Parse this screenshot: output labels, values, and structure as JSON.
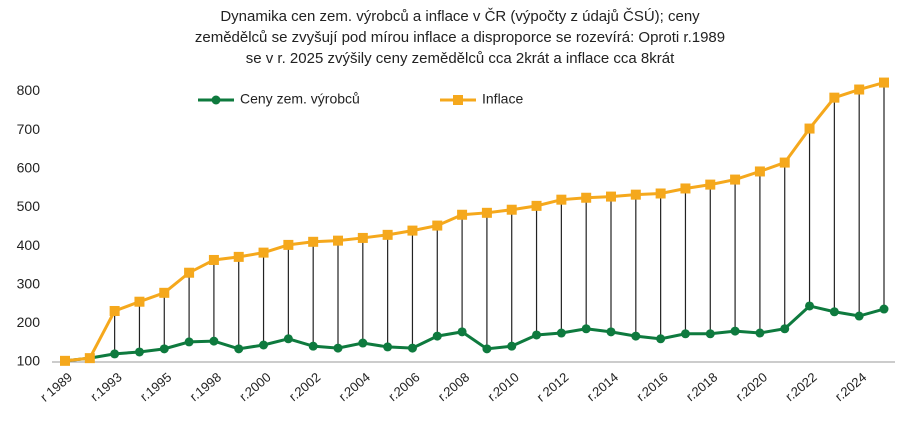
{
  "chart_data": {
    "type": "line",
    "title": [
      "Dynamika cen zem. výrobců  a inflace v ČR (výpočty z údajů ČSÚ); ceny",
      "zemědělců se zvyšují pod mírou inflace a disproporce se rozevírá:  Oproti r.1989",
      "se v r. 2025 zvýšily ceny zemědělců cca 2krát a inflace  cca 8krát"
    ],
    "categories": [
      "r 1989",
      null,
      "r.1993",
      null,
      "r.1995",
      null,
      "r.1998",
      null,
      "r.2000",
      null,
      "r.2002",
      null,
      "r.2004",
      null,
      "r.2006",
      null,
      "r.2008",
      null,
      "r.2010",
      null,
      "r 2012",
      null,
      "r.2014",
      null,
      "r.2016",
      null,
      "r.2018",
      null,
      "r.2020",
      null,
      "r.2022",
      null,
      "r.2024",
      null
    ],
    "series": [
      {
        "name": "Ceny zem. výrobců",
        "color": "#0e7a3e",
        "marker": "circle",
        "values": [
          103,
          110,
          121,
          126,
          134,
          152,
          154,
          134,
          144,
          160,
          141,
          136,
          149,
          139,
          136,
          167,
          178,
          134,
          141,
          170,
          175,
          186,
          178,
          167,
          160,
          173,
          173,
          180,
          175,
          186,
          245,
          230,
          219,
          237
        ]
      },
      {
        "name": "Inflace",
        "color": "#f5a81c",
        "marker": "square",
        "values": [
          103,
          110,
          232,
          256,
          279,
          331,
          364,
          372,
          383,
          403,
          411,
          414,
          421,
          429,
          440,
          453,
          481,
          486,
          494,
          504,
          520,
          525,
          528,
          533,
          536,
          549,
          559,
          572,
          593,
          616,
          704,
          784,
          805,
          823
        ]
      }
    ],
    "ylim": [
      100,
      840
    ],
    "yticks": [
      100,
      200,
      300,
      400,
      500,
      600,
      700,
      800
    ],
    "grid": false,
    "high_low_lines": true,
    "legend": "top"
  }
}
